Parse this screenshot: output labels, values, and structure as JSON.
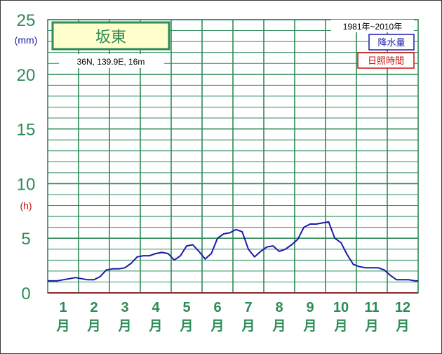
{
  "chart_data": {
    "type": "line",
    "title": "坂東",
    "subtitle": "36N,  139.9E,  16m",
    "period": "1981年~2010年",
    "legend": [
      {
        "label": "降水量",
        "color": "#1a1aa8"
      },
      {
        "label": "日照時間",
        "color": "#cc1111"
      }
    ],
    "y_ticks": [
      "0",
      "5",
      "10",
      "15",
      "20",
      "25"
    ],
    "y_unit_primary": "(mm)",
    "y_unit_secondary": "(h)",
    "ylim": [
      0,
      25
    ],
    "months": [
      {
        "num": "1",
        "suffix": "月"
      },
      {
        "num": "2",
        "suffix": "月"
      },
      {
        "num": "3",
        "suffix": "月"
      },
      {
        "num": "4",
        "suffix": "月"
      },
      {
        "num": "5",
        "suffix": "月"
      },
      {
        "num": "6",
        "suffix": "月"
      },
      {
        "num": "7",
        "suffix": "月"
      },
      {
        "num": "8",
        "suffix": "月"
      },
      {
        "num": "9",
        "suffix": "月"
      },
      {
        "num": "10",
        "suffix": "月"
      },
      {
        "num": "11",
        "suffix": "月"
      },
      {
        "num": "12",
        "suffix": "月"
      }
    ],
    "series": [
      {
        "name": "降水量",
        "color": "#1a1aa8",
        "values": [
          1.1,
          1.1,
          1.2,
          1.3,
          1.4,
          1.3,
          1.2,
          1.2,
          1.5,
          2.1,
          2.2,
          2.2,
          2.3,
          2.7,
          3.3,
          3.4,
          3.4,
          3.6,
          3.7,
          3.6,
          3.0,
          3.4,
          4.3,
          4.4,
          3.8,
          3.1,
          3.6,
          5.0,
          5.4,
          5.5,
          5.8,
          5.6,
          4.0,
          3.3,
          3.8,
          4.2,
          4.3,
          3.8,
          4.0,
          4.4,
          4.9,
          6.0,
          6.3,
          6.3,
          6.4,
          6.5,
          5.0,
          4.6,
          3.5,
          2.6,
          2.4,
          2.3,
          2.3,
          2.3,
          2.1,
          1.6,
          1.2,
          1.2,
          1.2,
          1.1
        ]
      }
    ]
  }
}
